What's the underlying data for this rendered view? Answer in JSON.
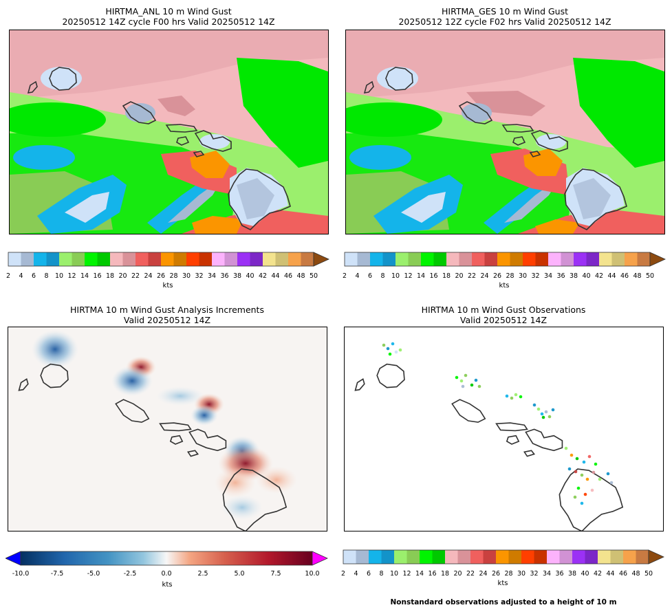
{
  "panels": {
    "anl": {
      "title_line1": "HIRTMA_ANL 10 m Wind Gust",
      "title_line2": "20250512 14Z cycle F00 hrs Valid 20250512 14Z"
    },
    "ges": {
      "title_line1": "HIRTMA_GES 10 m Wind Gust",
      "title_line2": "20250512 12Z cycle F02 hrs Valid 20250512 14Z"
    },
    "inc": {
      "title_line1": "HIRTMA 10 m Wind Gust Analysis Increments",
      "title_line2": "Valid 20250512 14Z"
    },
    "obs": {
      "title_line1": "HIRTMA 10 m Wind Gust Observations",
      "title_line2": "Valid 20250512 14Z"
    }
  },
  "units": "kts",
  "note": "Nonstandard observations adjusted to a height of 10 m",
  "chart_data": [
    {
      "type": "heatmap",
      "title": "HIRTMA_ANL 10 m Wind Gust",
      "colorbar_label": "kts",
      "colorbar_ticks": [
        "2",
        "4",
        "6",
        "8",
        "10",
        "12",
        "14",
        "16",
        "18",
        "20",
        "22",
        "24",
        "26",
        "28",
        "30",
        "32",
        "34",
        "36",
        "38",
        "40",
        "42",
        "44",
        "46",
        "48",
        "50"
      ],
      "colorbar_range": [
        2,
        50
      ],
      "extend": "max"
    },
    {
      "type": "heatmap",
      "title": "HIRTMA_GES 10 m Wind Gust",
      "colorbar_label": "kts",
      "colorbar_ticks": [
        "2",
        "4",
        "6",
        "8",
        "10",
        "12",
        "14",
        "16",
        "18",
        "20",
        "22",
        "24",
        "26",
        "28",
        "30",
        "32",
        "34",
        "36",
        "38",
        "40",
        "42",
        "44",
        "46",
        "48",
        "50"
      ],
      "colorbar_range": [
        2,
        50
      ],
      "extend": "max"
    },
    {
      "type": "heatmap",
      "title": "HIRTMA 10 m Wind Gust Analysis Increments",
      "colorbar_label": "kts",
      "colorbar_ticks": [
        "-10.0",
        "-7.5",
        "-5.0",
        "-2.5",
        "0.0",
        "2.5",
        "5.0",
        "7.5",
        "10.0"
      ],
      "colorbar_range": [
        -10,
        10
      ],
      "extend": "both"
    },
    {
      "type": "scatter",
      "title": "HIRTMA 10 m Wind Gust Observations",
      "colorbar_label": "kts",
      "colorbar_ticks": [
        "2",
        "4",
        "6",
        "8",
        "10",
        "12",
        "14",
        "16",
        "18",
        "20",
        "22",
        "24",
        "26",
        "28",
        "30",
        "32",
        "34",
        "36",
        "38",
        "40",
        "42",
        "44",
        "46",
        "48",
        "50"
      ],
      "colorbar_range": [
        2,
        50
      ],
      "extend": "max"
    }
  ],
  "colormaps": {
    "gust": [
      "#cfe2f8",
      "#a6b9d3",
      "#14b4ea",
      "#1393c9",
      "#9bef6d",
      "#89cc55",
      "#00f400",
      "#00c900",
      "#f5b8bc",
      "#d99299",
      "#f0605e",
      "#c9413f",
      "#fb9500",
      "#cf7b00",
      "#ff3f00",
      "#c93200",
      "#fcb3fc",
      "#d192d4",
      "#9b31f5",
      "#7c27c7",
      "#f3e38e",
      "#cfc074",
      "#f6a24b",
      "#c87a42"
    ],
    "gust_extend": "#8c4a10"
  }
}
